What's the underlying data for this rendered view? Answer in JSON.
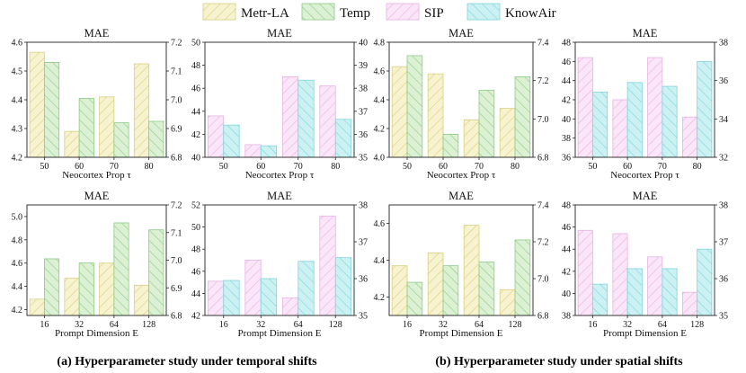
{
  "legend": [
    {
      "key": "metr",
      "label": "Metr-LA",
      "fill": "#f7f3cf",
      "stroke": "#d8cf86",
      "hatch": "/"
    },
    {
      "key": "temp",
      "label": "Temp",
      "fill": "#dcf1d4",
      "stroke": "#8ccb86",
      "hatch": "\\"
    },
    {
      "key": "sip",
      "label": "SIP",
      "fill": "#fae6f8",
      "stroke": "#e6b3e0",
      "hatch": "/"
    },
    {
      "key": "knowair",
      "label": "KnowAir",
      "fill": "#ccf1f3",
      "stroke": "#7fd5da",
      "hatch": "\\"
    }
  ],
  "captions": {
    "a": "(a) Hyperparameter study under temporal shifts",
    "b": "(b) Hyperparameter study under spatial shifts"
  },
  "chart_data": [
    {
      "id": "a-top-left",
      "type": "bar",
      "title": "MAE",
      "xlabel": "Neocortex Prop τ",
      "categories": [
        "50",
        "60",
        "70",
        "80"
      ],
      "left": {
        "ylim": [
          4.2,
          4.6
        ],
        "ticks": [
          "4.2",
          "4.3",
          "4.4",
          "4.5",
          "4.6"
        ]
      },
      "right": {
        "ylim": [
          6.8,
          7.2
        ],
        "ticks": [
          "6.8",
          "6.9",
          "7.0",
          "7.1",
          "7.2"
        ]
      },
      "series": [
        {
          "name": "Metr-LA",
          "key": "metr",
          "axis": "left",
          "values": [
            4.565,
            4.29,
            4.41,
            4.525
          ]
        },
        {
          "name": "Temp",
          "key": "temp",
          "axis": "right",
          "values": [
            7.13,
            7.005,
            6.92,
            6.925
          ]
        }
      ]
    },
    {
      "id": "a-top-right",
      "type": "bar",
      "title": "MAE",
      "xlabel": "Neocortex Prop τ",
      "categories": [
        "50",
        "60",
        "70",
        "80"
      ],
      "left": {
        "ylim": [
          40,
          50
        ],
        "ticks": [
          "40",
          "42",
          "44",
          "46",
          "48",
          "50"
        ]
      },
      "right": {
        "ylim": [
          35,
          40
        ],
        "ticks": [
          "35",
          "36",
          "37",
          "38",
          "39",
          "40"
        ]
      },
      "series": [
        {
          "name": "SIP",
          "key": "sip",
          "axis": "left",
          "values": [
            43.6,
            41.1,
            47.0,
            46.2
          ]
        },
        {
          "name": "KnowAir",
          "key": "knowair",
          "axis": "right",
          "values": [
            36.4,
            35.5,
            38.35,
            36.65
          ]
        }
      ]
    },
    {
      "id": "a-bottom-left",
      "type": "bar",
      "title": "MAE",
      "xlabel": "Prompt Dimension E",
      "categories": [
        "16",
        "32",
        "64",
        "128"
      ],
      "left": {
        "ylim": [
          4.15,
          5.1
        ],
        "ticks": [
          "4.2",
          "4.4",
          "4.6",
          "4.8",
          "5.0"
        ]
      },
      "right": {
        "ylim": [
          6.8,
          7.2
        ],
        "ticks": [
          "6.8",
          "6.9",
          "7.0",
          "7.1",
          "7.2"
        ]
      },
      "series": [
        {
          "name": "Metr-LA",
          "key": "metr",
          "axis": "left",
          "values": [
            4.29,
            4.47,
            4.6,
            4.41
          ]
        },
        {
          "name": "Temp",
          "key": "temp",
          "axis": "right",
          "values": [
            7.005,
            6.99,
            7.135,
            7.11
          ]
        }
      ]
    },
    {
      "id": "a-bottom-right",
      "type": "bar",
      "title": "MAE",
      "xlabel": "Prompt Dimension E",
      "categories": [
        "16",
        "32",
        "64",
        "128"
      ],
      "left": {
        "ylim": [
          42,
          52
        ],
        "ticks": [
          "42",
          "44",
          "46",
          "48",
          "50",
          "52"
        ]
      },
      "right": {
        "ylim": [
          35,
          38
        ],
        "ticks": [
          "35",
          "36",
          "37",
          "38"
        ]
      },
      "series": [
        {
          "name": "SIP",
          "key": "sip",
          "axis": "left",
          "values": [
            45.1,
            47.0,
            43.6,
            51.0
          ]
        },
        {
          "name": "KnowAir",
          "key": "knowair",
          "axis": "right",
          "values": [
            35.95,
            36.0,
            36.47,
            36.57
          ]
        }
      ]
    },
    {
      "id": "b-top-left",
      "type": "bar",
      "title": "MAE",
      "xlabel": "Neocortex Prop τ",
      "categories": [
        "50",
        "60",
        "70",
        "80"
      ],
      "left": {
        "ylim": [
          4.0,
          4.8
        ],
        "ticks": [
          "4.0",
          "4.2",
          "4.4",
          "4.6",
          "4.8"
        ]
      },
      "right": {
        "ylim": [
          6.8,
          7.4
        ],
        "ticks": [
          "6.8",
          "7.0",
          "7.2",
          "7.4"
        ]
      },
      "series": [
        {
          "name": "Metr-LA",
          "key": "metr",
          "axis": "left",
          "values": [
            4.63,
            4.58,
            4.26,
            4.34
          ]
        },
        {
          "name": "Temp",
          "key": "temp",
          "axis": "right",
          "values": [
            7.33,
            6.92,
            7.15,
            7.22
          ]
        }
      ]
    },
    {
      "id": "b-top-right",
      "type": "bar",
      "title": "MAE",
      "xlabel": "Neocortex Prop τ",
      "categories": [
        "50",
        "60",
        "70",
        "80"
      ],
      "left": {
        "ylim": [
          36,
          48
        ],
        "ticks": [
          "36",
          "38",
          "40",
          "42",
          "44",
          "46",
          "48"
        ]
      },
      "right": {
        "ylim": [
          32,
          38
        ],
        "ticks": [
          "32",
          "34",
          "36",
          "38"
        ]
      },
      "series": [
        {
          "name": "SIP",
          "key": "sip",
          "axis": "left",
          "values": [
            46.4,
            42.0,
            46.4,
            40.2
          ]
        },
        {
          "name": "KnowAir",
          "key": "knowair",
          "axis": "right",
          "values": [
            35.4,
            35.9,
            35.7,
            37.0
          ]
        }
      ]
    },
    {
      "id": "b-bottom-left",
      "type": "bar",
      "title": "MAE",
      "xlabel": "Prompt Dimension E",
      "categories": [
        "16",
        "32",
        "64",
        "128"
      ],
      "left": {
        "ylim": [
          4.1,
          4.7
        ],
        "ticks": [
          "4.2",
          "4.4",
          "4.6"
        ]
      },
      "right": {
        "ylim": [
          6.8,
          7.4
        ],
        "ticks": [
          "6.8",
          "7.0",
          "7.2",
          "7.4"
        ]
      },
      "series": [
        {
          "name": "Metr-LA",
          "key": "metr",
          "axis": "left",
          "values": [
            4.37,
            4.44,
            4.59,
            4.24
          ]
        },
        {
          "name": "Temp",
          "key": "temp",
          "axis": "right",
          "values": [
            6.98,
            7.07,
            7.09,
            7.21
          ]
        }
      ]
    },
    {
      "id": "b-bottom-right",
      "type": "bar",
      "title": "MAE",
      "xlabel": "Prompt Dimension E",
      "categories": [
        "16",
        "32",
        "64",
        "128"
      ],
      "left": {
        "ylim": [
          38,
          48
        ],
        "ticks": [
          "38",
          "40",
          "42",
          "44",
          "46",
          "48"
        ]
      },
      "right": {
        "ylim": [
          35,
          38
        ],
        "ticks": [
          "35",
          "36",
          "37",
          "38"
        ]
      },
      "series": [
        {
          "name": "SIP",
          "key": "sip",
          "axis": "left",
          "values": [
            45.7,
            45.4,
            43.3,
            40.1
          ]
        },
        {
          "name": "KnowAir",
          "key": "knowair",
          "axis": "right",
          "values": [
            35.85,
            36.27,
            36.27,
            36.8
          ]
        }
      ]
    }
  ]
}
